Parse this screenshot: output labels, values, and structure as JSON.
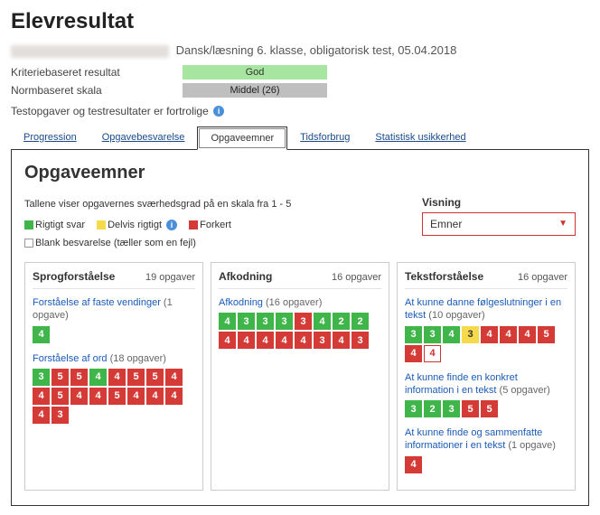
{
  "page_title": "Elevresultat",
  "subtitle": "Dansk/læsning 6. klasse, obligatorisk test, 05.04.2018",
  "meta": {
    "kriterie_label": "Kriteriebaseret resultat",
    "kriterie_value": "God",
    "norm_label": "Normbaseret skala",
    "norm_value": "Middel (26)"
  },
  "confidential": "Testopgaver og testresultater er fortrolige",
  "tabs": {
    "progression": "Progression",
    "opgavebesvarelse": "Opgavebesvarelse",
    "opgaveemner": "Opgaveemner",
    "tidsforbrug": "Tidsforbrug",
    "statistisk": "Statistisk usikkerhed"
  },
  "panel": {
    "heading": "Opgaveemner",
    "scale_desc": "Tallene viser opgavernes sværhedsgrad på en skala fra 1 - 5",
    "legend": {
      "correct": "Rigtigt svar",
      "partial": "Delvis rigtigt",
      "wrong": "Forkert",
      "blank": "Blank besvarelse (tæller som en fejl)"
    },
    "visning_label": "Visning",
    "visning_value": "Emner"
  },
  "columns": [
    {
      "title": "Sprogforståelse",
      "count": "19 opgaver",
      "groups": [
        {
          "title": "Forståelse af faste vendinger",
          "count_text": "(1 opgave)",
          "cells": [
            {
              "v": "4",
              "c": "g"
            }
          ]
        },
        {
          "title": "Forståelse af ord",
          "count_text": "(18 opgaver)",
          "cells": [
            {
              "v": "3",
              "c": "g"
            },
            {
              "v": "5",
              "c": "r"
            },
            {
              "v": "5",
              "c": "r"
            },
            {
              "v": "4",
              "c": "g"
            },
            {
              "v": "4",
              "c": "r"
            },
            {
              "v": "5",
              "c": "r"
            },
            {
              "v": "5",
              "c": "r"
            },
            {
              "v": "4",
              "c": "r"
            },
            {
              "v": "4",
              "c": "r"
            },
            {
              "v": "5",
              "c": "r"
            },
            {
              "v": "4",
              "c": "r"
            },
            {
              "v": "4",
              "c": "r"
            },
            {
              "v": "5",
              "c": "r"
            },
            {
              "v": "4",
              "c": "r"
            },
            {
              "v": "4",
              "c": "r"
            },
            {
              "v": "4",
              "c": "r"
            },
            {
              "v": "4",
              "c": "r"
            },
            {
              "v": "3",
              "c": "r"
            }
          ]
        }
      ]
    },
    {
      "title": "Afkodning",
      "count": "16 opgaver",
      "groups": [
        {
          "title": "Afkodning",
          "count_text": "(16 opgaver)",
          "cells": [
            {
              "v": "4",
              "c": "g"
            },
            {
              "v": "3",
              "c": "g"
            },
            {
              "v": "3",
              "c": "g"
            },
            {
              "v": "3",
              "c": "g"
            },
            {
              "v": "3",
              "c": "r"
            },
            {
              "v": "4",
              "c": "g"
            },
            {
              "v": "2",
              "c": "g"
            },
            {
              "v": "2",
              "c": "g"
            },
            {
              "v": "4",
              "c": "r"
            },
            {
              "v": "4",
              "c": "r"
            },
            {
              "v": "4",
              "c": "r"
            },
            {
              "v": "4",
              "c": "r"
            },
            {
              "v": "4",
              "c": "r"
            },
            {
              "v": "3",
              "c": "r"
            },
            {
              "v": "4",
              "c": "r"
            },
            {
              "v": "3",
              "c": "r"
            }
          ]
        }
      ]
    },
    {
      "title": "Tekstforståelse",
      "count": "16 opgaver",
      "groups": [
        {
          "title": "At kunne danne følgeslutninger i en tekst",
          "count_text": "(10 opgaver)",
          "cells": [
            {
              "v": "3",
              "c": "g"
            },
            {
              "v": "3",
              "c": "g"
            },
            {
              "v": "4",
              "c": "g"
            },
            {
              "v": "3",
              "c": "y"
            },
            {
              "v": "4",
              "c": "r"
            },
            {
              "v": "4",
              "c": "r"
            },
            {
              "v": "4",
              "c": "r"
            },
            {
              "v": "5",
              "c": "r"
            },
            {
              "v": "4",
              "c": "r"
            },
            {
              "v": "4",
              "c": "w"
            }
          ]
        },
        {
          "title": "At kunne finde en konkret information i en tekst",
          "count_text": "(5 opgaver)",
          "cells": [
            {
              "v": "3",
              "c": "g"
            },
            {
              "v": "2",
              "c": "g"
            },
            {
              "v": "3",
              "c": "g"
            },
            {
              "v": "5",
              "c": "r"
            },
            {
              "v": "5",
              "c": "r"
            }
          ]
        },
        {
          "title": "At kunne finde og sammenfatte informationer i en tekst",
          "count_text": "(1 opgave)",
          "cells": [
            {
              "v": "4",
              "c": "r"
            }
          ]
        }
      ]
    }
  ],
  "colors": {
    "green": "#3fb54a",
    "yellow": "#f7d94c",
    "red": "#d43b36",
    "link": "#1a5bb8",
    "badge_green": "#a7e6a0",
    "badge_gray": "#bfbfbf"
  }
}
